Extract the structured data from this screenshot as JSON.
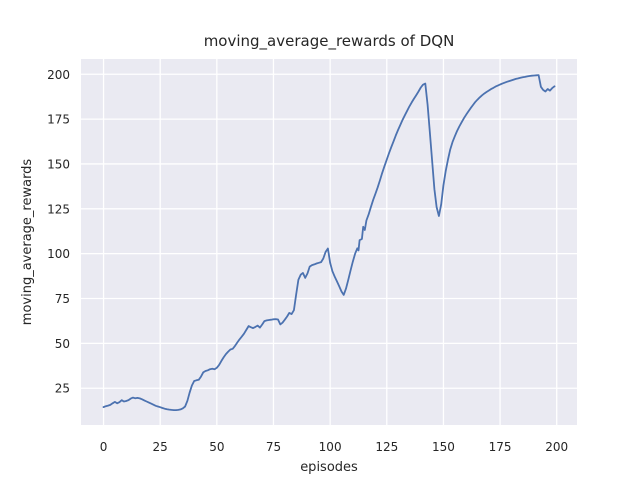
{
  "chart_data": {
    "type": "line",
    "title": "moving_average_rewards of DQN",
    "xlabel": "episodes",
    "ylabel": "moving_average_rewards",
    "xticks": [
      0,
      25,
      50,
      75,
      100,
      125,
      150,
      175,
      200
    ],
    "yticks": [
      25,
      50,
      75,
      100,
      125,
      150,
      175,
      200
    ],
    "xlim": [
      -9.95,
      208.95
    ],
    "ylim": [
      4.5,
      208.5
    ],
    "grid": true,
    "legend_position": "none",
    "colors": {
      "figure_background": "#ffffff",
      "axes_background": "#EAEAF2",
      "grid": "#ffffff",
      "text": "#262626",
      "line": "#4C72B0"
    },
    "series": [
      {
        "name": "moving_average_rewards",
        "color": "#4C72B0",
        "points": [
          [
            0,
            14.5
          ],
          [
            1,
            15.0
          ],
          [
            2,
            15.3
          ],
          [
            3,
            15.7
          ],
          [
            4,
            16.6
          ],
          [
            5,
            17.4
          ],
          [
            6,
            16.6
          ],
          [
            7,
            17.2
          ],
          [
            8,
            18.3
          ],
          [
            9,
            17.6
          ],
          [
            10,
            17.9
          ],
          [
            11,
            18.4
          ],
          [
            12,
            19.2
          ],
          [
            13,
            19.8
          ],
          [
            14,
            19.4
          ],
          [
            15,
            19.6
          ],
          [
            16,
            19.3
          ],
          [
            17,
            18.8
          ],
          [
            18,
            18.2
          ],
          [
            19,
            17.6
          ],
          [
            20,
            17.0
          ],
          [
            21,
            16.4
          ],
          [
            22,
            15.8
          ],
          [
            23,
            15.2
          ],
          [
            24,
            14.8
          ],
          [
            25,
            14.4
          ],
          [
            26,
            14.0
          ],
          [
            27,
            13.6
          ],
          [
            28,
            13.3
          ],
          [
            29,
            13.1
          ],
          [
            30,
            12.9
          ],
          [
            31,
            12.8
          ],
          [
            32,
            12.8
          ],
          [
            33,
            12.9
          ],
          [
            34,
            13.2
          ],
          [
            35,
            13.8
          ],
          [
            36,
            14.8
          ],
          [
            37,
            18.0
          ],
          [
            38,
            22.5
          ],
          [
            39,
            26.5
          ],
          [
            40,
            29.0
          ],
          [
            41,
            29.4
          ],
          [
            42,
            29.7
          ],
          [
            43,
            31.5
          ],
          [
            44,
            33.8
          ],
          [
            45,
            34.6
          ],
          [
            46,
            35.0
          ],
          [
            47,
            35.6
          ],
          [
            48,
            35.9
          ],
          [
            49,
            35.6
          ],
          [
            50,
            36.4
          ],
          [
            51,
            38.0
          ],
          [
            52,
            40.2
          ],
          [
            53,
            42.2
          ],
          [
            54,
            44.0
          ],
          [
            55,
            45.4
          ],
          [
            56,
            46.6
          ],
          [
            57,
            47.0
          ],
          [
            58,
            48.6
          ],
          [
            59,
            50.4
          ],
          [
            60,
            52.2
          ],
          [
            61,
            53.8
          ],
          [
            62,
            55.4
          ],
          [
            63,
            57.5
          ],
          [
            64,
            59.6
          ],
          [
            65,
            59.0
          ],
          [
            66,
            58.5
          ],
          [
            67,
            59.2
          ],
          [
            68,
            59.9
          ],
          [
            69,
            58.8
          ],
          [
            70,
            60.5
          ],
          [
            71,
            62.4
          ],
          [
            72,
            62.8
          ],
          [
            73,
            63.0
          ],
          [
            74,
            63.2
          ],
          [
            75,
            63.4
          ],
          [
            76,
            63.5
          ],
          [
            77,
            63.3
          ],
          [
            78,
            60.6
          ],
          [
            79,
            61.5
          ],
          [
            80,
            63.2
          ],
          [
            81,
            65.0
          ],
          [
            82,
            67.0
          ],
          [
            83,
            66.3
          ],
          [
            84,
            68.5
          ],
          [
            85,
            77.0
          ],
          [
            86,
            85.5
          ],
          [
            87,
            88.3
          ],
          [
            88,
            89.3
          ],
          [
            89,
            86.5
          ],
          [
            90,
            89.0
          ],
          [
            91,
            92.8
          ],
          [
            92,
            93.6
          ],
          [
            93,
            94.0
          ],
          [
            94,
            94.5
          ],
          [
            95,
            94.9
          ],
          [
            96,
            95.3
          ],
          [
            97,
            97.3
          ],
          [
            98,
            101.0
          ],
          [
            99,
            102.9
          ],
          [
            100,
            95.0
          ],
          [
            101,
            90.2
          ],
          [
            102,
            87.2
          ],
          [
            103,
            84.6
          ],
          [
            104,
            81.8
          ],
          [
            105,
            78.9
          ],
          [
            106,
            77.0
          ],
          [
            107,
            80.5
          ],
          [
            108,
            85.5
          ],
          [
            109,
            90.5
          ],
          [
            110,
            95.5
          ],
          [
            111,
            100.0
          ],
          [
            112,
            103.0
          ],
          [
            112.5,
            101.8
          ],
          [
            113,
            107.5
          ],
          [
            114,
            108.2
          ],
          [
            114.6,
            115.0
          ],
          [
            115.3,
            113.2
          ],
          [
            116,
            118.5
          ],
          [
            117,
            122.0
          ],
          [
            118,
            126.0
          ],
          [
            119,
            130.0
          ],
          [
            120,
            133.5
          ],
          [
            121,
            137.0
          ],
          [
            122,
            141.0
          ],
          [
            123,
            145.0
          ],
          [
            124,
            148.8
          ],
          [
            125,
            152.5
          ],
          [
            126,
            156.0
          ],
          [
            127,
            159.4
          ],
          [
            128,
            162.7
          ],
          [
            129,
            165.9
          ],
          [
            130,
            169.0
          ],
          [
            131,
            171.9
          ],
          [
            132,
            174.6
          ],
          [
            133,
            177.2
          ],
          [
            134,
            179.7
          ],
          [
            135,
            182.1
          ],
          [
            136,
            184.3
          ],
          [
            137,
            186.4
          ],
          [
            138,
            188.3
          ],
          [
            139,
            190.4
          ],
          [
            140,
            192.6
          ],
          [
            141,
            194.2
          ],
          [
            142,
            194.8
          ],
          [
            143,
            183.0
          ],
          [
            144,
            168.0
          ],
          [
            145,
            152.0
          ],
          [
            146,
            136.0
          ],
          [
            147,
            126.0
          ],
          [
            148,
            121.0
          ],
          [
            149,
            127.5
          ],
          [
            150,
            138.0
          ],
          [
            151,
            146.0
          ],
          [
            152,
            152.5
          ],
          [
            153,
            158.0
          ],
          [
            154,
            162.2
          ],
          [
            155,
            165.4
          ],
          [
            156,
            168.3
          ],
          [
            157,
            170.9
          ],
          [
            158,
            173.2
          ],
          [
            159,
            175.4
          ],
          [
            160,
            177.4
          ],
          [
            161,
            179.3
          ],
          [
            162,
            181.1
          ],
          [
            163,
            182.8
          ],
          [
            164,
            184.4
          ],
          [
            165,
            185.8
          ],
          [
            166,
            187.1
          ],
          [
            167,
            188.2
          ],
          [
            168,
            189.2
          ],
          [
            169,
            190.1
          ],
          [
            170,
            190.9
          ],
          [
            171,
            191.7
          ],
          [
            172,
            192.4
          ],
          [
            173,
            193.1
          ],
          [
            174,
            193.7
          ],
          [
            175,
            194.3
          ],
          [
            176,
            194.8
          ],
          [
            177,
            195.3
          ],
          [
            178,
            195.8
          ],
          [
            179,
            196.2
          ],
          [
            180,
            196.6
          ],
          [
            181,
            197.0
          ],
          [
            182,
            197.4
          ],
          [
            183,
            197.7
          ],
          [
            184,
            198.0
          ],
          [
            185,
            198.3
          ],
          [
            186,
            198.5
          ],
          [
            187,
            198.8
          ],
          [
            188,
            199.0
          ],
          [
            189,
            199.2
          ],
          [
            190,
            199.3
          ],
          [
            191,
            199.4
          ],
          [
            192,
            199.5
          ],
          [
            193,
            193.0
          ],
          [
            194,
            191.3
          ],
          [
            195,
            190.4
          ],
          [
            196,
            191.8
          ],
          [
            197,
            190.9
          ],
          [
            198,
            192.3
          ],
          [
            199,
            193.3
          ]
        ]
      }
    ]
  }
}
